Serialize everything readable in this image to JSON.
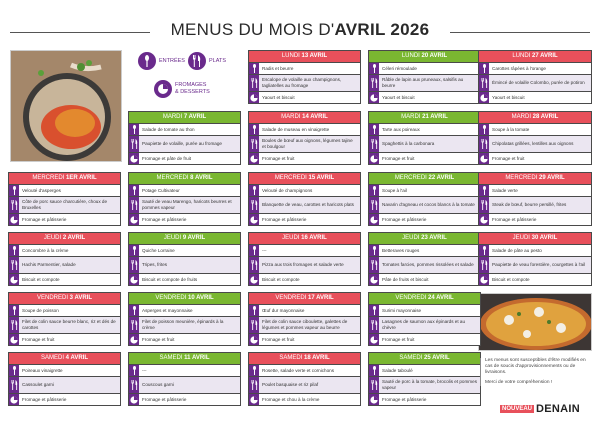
{
  "title": {
    "prefix": "MENUS DU MOIS D'",
    "bold": "AVRIL 2026"
  },
  "legend": {
    "entrees": "ENTRÉES",
    "plats": "PLATS",
    "desserts_line1": "FROMAGES",
    "desserts_line2": "& DESSERTS"
  },
  "colors": {
    "purple": "#6a2a8c",
    "red": "#e8505b",
    "green": "#7ab731"
  },
  "days": {
    "lundi13": {
      "day": "LUNDI ",
      "date": "13 AVRIL",
      "color": "red",
      "entree": "Radis et beurre",
      "plat": "Escalope de volaille aux champignons, tagliatelles au fromage",
      "dessert": "Yaourt et biscuit"
    },
    "lundi20": {
      "day": "LUNDI ",
      "date": "20 AVRIL",
      "color": "green",
      "entree": "Céleri rémoulade",
      "plat": "Râble de lapin aux pruneaux, salsifis au beurre",
      "dessert": "Yaourt et biscuit"
    },
    "lundi27": {
      "day": "LUNDI ",
      "date": "27 AVRIL",
      "color": "red",
      "entree": "Carottes râpées à l'orange",
      "plat": "Émincé de volaille Colombo, purée de potiron",
      "dessert": "Yaourt et biscuit"
    },
    "mardi7": {
      "day": "MARDI ",
      "date": "7 AVRIL",
      "color": "green",
      "entree": "Salade de tomate au thon",
      "plat": "Paupiette de volaille, purée au fromage",
      "dessert": "Fromage et pâte de fruit"
    },
    "mardi14": {
      "day": "MARDI ",
      "date": "14 AVRIL",
      "color": "red",
      "entree": "Salade de museau en vinaigrette",
      "plat": "Boules de bœuf aux oignons, légumes tajine et boulgour",
      "dessert": "Fromage et fruit"
    },
    "mardi21": {
      "day": "MARDI ",
      "date": "21 AVRIL",
      "color": "green",
      "entree": "Tarte aux poireaux",
      "plat": "Spaghettis à la carbonara",
      "dessert": "Fromage et fruit"
    },
    "mardi28": {
      "day": "MARDI ",
      "date": "28 AVRIL",
      "color": "red",
      "entree": "Soupe à la tomate",
      "plat": "Chipolatas grillées, lentilles aux oignons",
      "dessert": "Fromage et fruit"
    },
    "mercredi1": {
      "day": "MERCREDI ",
      "date": "1er AVRIL",
      "color": "red",
      "entree": "Velouté d'asperges",
      "plat": "Côte de porc sauce charcutière, choux de Bruxelles",
      "dessert": "Fromage et pâtisserie"
    },
    "mercredi8": {
      "day": "MERCREDI ",
      "date": "8 AVRIL",
      "color": "green",
      "entree": "Potage Cultivateur",
      "plat": "Sauté de veau Marengo, haricots beurres et pommes vapeur",
      "dessert": "Fromage et pâtisserie"
    },
    "mercredi15": {
      "day": "MERCREDI ",
      "date": "15 AVRIL",
      "color": "red",
      "entree": "Velouté de champignons",
      "plat": "Blanquette de veau, carottes et haricots plats",
      "dessert": "Fromage et pâtisserie"
    },
    "mercredi22": {
      "day": "MERCREDI ",
      "date": "22 AVRIL",
      "color": "green",
      "entree": "Soupe à l'ail",
      "plat": "Navarin d'agneau et cocos blancs à la tomate",
      "dessert": "Fromage et pâtisserie"
    },
    "mercredi29": {
      "day": "MERCREDI ",
      "date": "29 AVRIL",
      "color": "red",
      "entree": "Salade verte",
      "plat": "Steak de bœuf, beurre persillé, frites",
      "dessert": "Fromage et pâtisserie"
    },
    "jeudi2": {
      "day": "JEUDI ",
      "date": "2 AVRIL",
      "color": "red",
      "entree": "Concombre à la crème",
      "plat": "Hachis Parmentier, salade",
      "dessert": "Biscuit et compote"
    },
    "jeudi9": {
      "day": "JEUDI ",
      "date": "9 AVRIL",
      "color": "green",
      "entree": "Quiche Lorraine",
      "plat": "Tripes, frites",
      "dessert": "Biscuit et compote de fruits"
    },
    "jeudi16": {
      "day": "JEUDI ",
      "date": "16 AVRIL",
      "color": "red",
      "entree": "---",
      "plat": "Pizza aux trois fromages et salade verte",
      "dessert": "Biscuit et compote"
    },
    "jeudi23": {
      "day": "JEUDI ",
      "date": "23 AVRIL",
      "color": "green",
      "entree": "Betteraves rouges",
      "plat": "Tomates farcies, pommes rissolées et salade",
      "dessert": "Pâte de fruits et biscuit"
    },
    "jeudi30": {
      "day": "JEUDI ",
      "date": "30 AVRIL",
      "color": "red",
      "entree": "Salade de pâte au pesto",
      "plat": "Paupiette de veau forestière, courgettes à l'ail",
      "dessert": "Biscuit et compote"
    },
    "vendredi3": {
      "day": "VENDREDI ",
      "date": "3 AVRIL",
      "color": "red",
      "entree": "Soupe de poisson",
      "plat": "Filet de colin sauce beurre blanc, riz et dés de carottes",
      "dessert": "Fromage et fruit"
    },
    "vendredi10": {
      "day": "VENDREDI ",
      "date": "10 AVRIL",
      "color": "green",
      "entree": "Asperges et mayonnaise",
      "plat": "Filet de poisson meunière, épinards à la crème",
      "dessert": "Fromage et fruit"
    },
    "vendredi17": {
      "day": "VENDREDI ",
      "date": "17 AVRIL",
      "color": "red",
      "entree": "Œuf dur mayonnaise",
      "plat": "Filet de colin sauce ciboulette, galettes de légumes et pommes vapeur au beurre",
      "dessert": "Fromage et fruit"
    },
    "vendredi24": {
      "day": "VENDREDI ",
      "date": "24 AVRIL",
      "color": "green",
      "entree": "Surimi mayonnaise",
      "plat": "Lasagnes de saumon aux épinards et au chèvre",
      "dessert": "Fromage et fruit"
    },
    "samedi4": {
      "day": "SAMEDI ",
      "date": "4 AVRIL",
      "color": "red",
      "entree": "Poireaux vinaigrette",
      "plat": "Cassoulet garni",
      "dessert": "Fromage et pâtisserie"
    },
    "samedi11": {
      "day": "SAMEDI ",
      "date": "11 AVRIL",
      "color": "green",
      "entree": "---",
      "plat": "Couscous garni",
      "dessert": "Fromage et pâtisserie"
    },
    "samedi18": {
      "day": "SAMEDI ",
      "date": "18 AVRIL",
      "color": "red",
      "entree": "Rosette, salade verte et cornichons",
      "plat": "Poulet basquaise et riz pilaf",
      "dessert": "Fromage et chou à la crème"
    },
    "samedi25": {
      "day": "SAMEDI ",
      "date": "25 AVRIL",
      "color": "green",
      "entree": "Salade taboulé",
      "plat": "Sauté de porc à la tomate, brocolis et pommes vapeur",
      "dessert": "Fromage et pâtisserie"
    }
  },
  "note": {
    "line1": "Les menus sont susceptibles d'être modifiés en cas de soucis d'approvisionnements ou de livraisons.",
    "line2": "Merci de votre compréhension !"
  },
  "brand": {
    "nouveau": "NOUVEAU",
    "name": "DENAIN"
  }
}
